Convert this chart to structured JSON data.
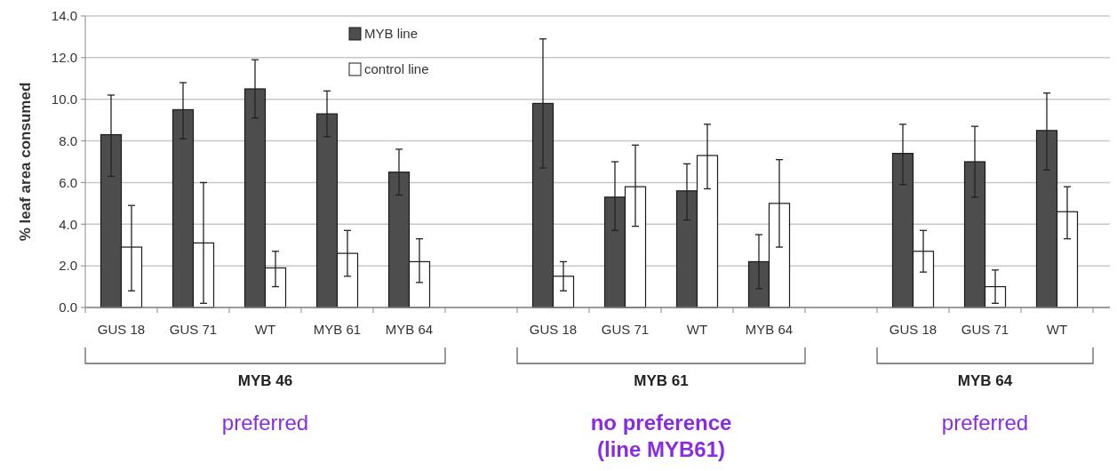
{
  "chart_data": {
    "type": "bar",
    "ylabel": "% leaf area consumed",
    "categories": [
      "GUS 18",
      "GUS 71",
      "WT",
      "MYB 61",
      "MYB 64",
      null,
      "GUS 18",
      "GUS 71",
      "WT",
      "MYB 64",
      null,
      "GUS 18",
      "GUS 71",
      "WT"
    ],
    "series": [
      {
        "name": "MYB line",
        "color": "#4d4d4d",
        "values": [
          8.3,
          9.5,
          10.5,
          9.3,
          6.5,
          null,
          9.8,
          5.3,
          5.6,
          2.2,
          null,
          7.4,
          7.0,
          8.5
        ],
        "errors": [
          [
            6.3,
            10.2
          ],
          [
            8.1,
            10.8
          ],
          [
            9.1,
            11.9
          ],
          [
            8.2,
            10.4
          ],
          [
            5.4,
            7.6
          ],
          null,
          [
            6.7,
            12.9
          ],
          [
            3.7,
            7.0
          ],
          [
            4.2,
            6.9
          ],
          [
            0.9,
            3.5
          ],
          null,
          [
            5.9,
            8.8
          ],
          [
            5.3,
            8.7
          ],
          [
            6.6,
            10.3
          ]
        ]
      },
      {
        "name": "control line",
        "color": "#ffffff",
        "values": [
          2.9,
          3.1,
          1.9,
          2.6,
          2.2,
          null,
          1.5,
          5.8,
          7.3,
          5.0,
          null,
          2.7,
          1.0,
          4.6
        ],
        "errors": [
          [
            0.8,
            4.9
          ],
          [
            0.2,
            6.0
          ],
          [
            1.0,
            2.7
          ],
          [
            1.5,
            3.7
          ],
          [
            1.2,
            3.3
          ],
          null,
          [
            0.8,
            2.2
          ],
          [
            3.9,
            7.8
          ],
          [
            5.7,
            8.8
          ],
          [
            2.9,
            7.1
          ],
          null,
          [
            1.7,
            3.7
          ],
          [
            0.2,
            1.8
          ],
          [
            3.3,
            5.8
          ]
        ]
      }
    ],
    "ylim": [
      0,
      14
    ],
    "yticks": [
      {
        "value": 0,
        "label": "0.0"
      },
      {
        "value": 2,
        "label": "2.0"
      },
      {
        "value": 4,
        "label": "4.0"
      },
      {
        "value": 6,
        "label": "6.0"
      },
      {
        "value": 8,
        "label": "8.0"
      },
      {
        "value": 10,
        "label": "10.0"
      },
      {
        "value": 12,
        "label": "12.0"
      },
      {
        "value": 14,
        "label": "14.0"
      }
    ],
    "grid": "y",
    "legend": "top",
    "annotations": [
      "MYB 46",
      "MYB 61",
      "MYB 64",
      "preferred",
      "no preference\n(line MYB61)",
      "preferred"
    ]
  }
}
